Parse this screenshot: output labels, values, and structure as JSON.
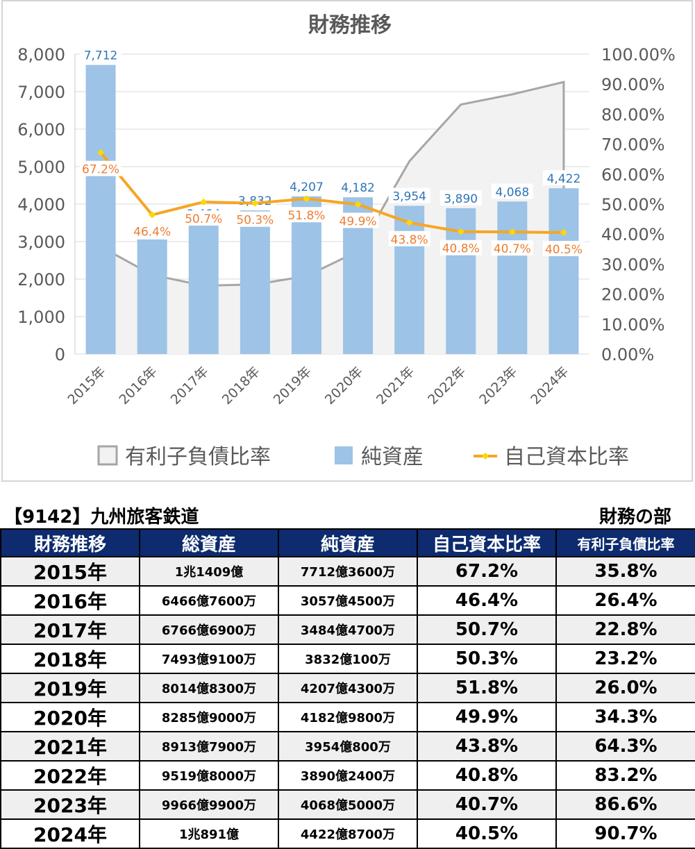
{
  "chart_data": {
    "type": "bar",
    "title": "財務推移",
    "categories": [
      "2015年",
      "2016年",
      "2017年",
      "2018年",
      "2019年",
      "2020年",
      "2021年",
      "2022年",
      "2023年",
      "2024年"
    ],
    "ylim": [
      0,
      8000
    ],
    "y2lim": [
      0,
      100
    ],
    "y_ticks": [
      "0",
      "1,000",
      "2,000",
      "3,000",
      "4,000",
      "5,000",
      "6,000",
      "7,000",
      "8,000"
    ],
    "y2_ticks": [
      "0.00%",
      "10.00%",
      "20.00%",
      "30.00%",
      "40.00%",
      "50.00%",
      "60.00%",
      "70.00%",
      "80.00%",
      "90.00%",
      "100.00%"
    ],
    "legend_position": "bottom",
    "grid": true,
    "series": [
      {
        "name": "有利子負債比率",
        "kind": "area",
        "axis": "right",
        "color": "#a6a6a6",
        "fill": "#f2f2f2",
        "values": [
          35.8,
          26.4,
          22.8,
          23.2,
          26.0,
          34.3,
          64.3,
          83.2,
          86.6,
          90.7
        ]
      },
      {
        "name": "純資産",
        "kind": "bar",
        "axis": "left",
        "color": "#9dc3e6",
        "values": [
          7712,
          3057,
          3484,
          3832,
          4207,
          4182,
          3954,
          3890,
          4068,
          4422
        ],
        "labels": [
          "7,712",
          "3,057",
          "3,484",
          "3,832",
          "4,207",
          "4,182",
          "3,954",
          "3,890",
          "4,068",
          "4,422"
        ]
      },
      {
        "name": "自己資本比率",
        "kind": "line",
        "axis": "right",
        "color": "#f5a623",
        "marker_color": "#ffd700",
        "values": [
          67.2,
          46.4,
          50.7,
          50.3,
          51.8,
          49.9,
          43.8,
          40.8,
          40.7,
          40.5
        ],
        "labels": [
          "67.2%",
          "46.4%",
          "50.7%",
          "50.3%",
          "51.8%",
          "49.9%",
          "43.8%",
          "40.8%",
          "40.7%",
          "40.5%"
        ]
      }
    ]
  },
  "caption": {
    "left": "【9142】九州旅客鉄道",
    "right": "財務の部"
  },
  "table": {
    "headers": [
      "財務推移",
      "総資産",
      "純資産",
      "自己資本比率",
      "有利子負債比率"
    ],
    "rows": [
      [
        "2015年",
        "1兆1409億",
        "7712億3600万",
        "67.2%",
        "35.8%"
      ],
      [
        "2016年",
        "6466億7600万",
        "3057億4500万",
        "46.4%",
        "26.4%"
      ],
      [
        "2017年",
        "6766億6900万",
        "3484億4700万",
        "50.7%",
        "22.8%"
      ],
      [
        "2018年",
        "7493億9100万",
        "3832億100万",
        "50.3%",
        "23.2%"
      ],
      [
        "2019年",
        "8014億8300万",
        "4207億4300万",
        "51.8%",
        "26.0%"
      ],
      [
        "2020年",
        "8285億9000万",
        "4182億9800万",
        "49.9%",
        "34.3%"
      ],
      [
        "2021年",
        "8913億7900万",
        "3954億800万",
        "43.8%",
        "64.3%"
      ],
      [
        "2022年",
        "9519億8000万",
        "3890億2400万",
        "40.8%",
        "83.2%"
      ],
      [
        "2023年",
        "9966億9900万",
        "4068億5000万",
        "40.7%",
        "86.6%"
      ],
      [
        "2024年",
        "1兆891億",
        "4422億8700万",
        "40.5%",
        "90.7%"
      ]
    ]
  }
}
